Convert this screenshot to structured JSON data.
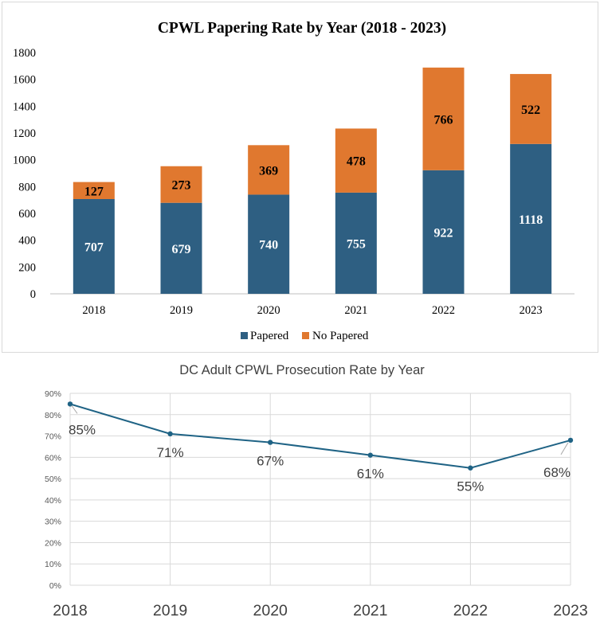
{
  "colors": {
    "papered": "#2e5f82",
    "no_papered": "#e0782f",
    "line": "#1f6385",
    "grid": "#d9d9d9",
    "axis": "#595959",
    "text": "#000000",
    "label_gray": "#404040"
  },
  "chart_data": [
    {
      "type": "bar",
      "stacked": true,
      "title": "CPWL Papering Rate by Year (2018 - 2023)",
      "categories": [
        "2018",
        "2019",
        "2020",
        "2021",
        "2022",
        "2023"
      ],
      "series": [
        {
          "name": "Papered",
          "color_key": "papered",
          "values": [
            707,
            679,
            740,
            755,
            922,
            1118
          ]
        },
        {
          "name": "No Papered",
          "color_key": "no_papered",
          "values": [
            127,
            273,
            369,
            478,
            766,
            522
          ]
        }
      ],
      "ylim": [
        0,
        1800
      ],
      "yticks": [
        0,
        200,
        400,
        600,
        800,
        1000,
        1200,
        1400,
        1600,
        1800
      ],
      "xlabel": "",
      "ylabel": "",
      "grid": false,
      "legend": "bottom"
    },
    {
      "type": "line",
      "title": "DC Adult CPWL Prosecution Rate by Year",
      "categories": [
        "2018",
        "2019",
        "2020",
        "2021",
        "2022",
        "2023"
      ],
      "series": [
        {
          "name": "Prosecution Rate",
          "color_key": "line",
          "values": [
            85,
            71,
            67,
            61,
            55,
            68
          ]
        }
      ],
      "data_labels": [
        "85%",
        "71%",
        "67%",
        "61%",
        "55%",
        "68%"
      ],
      "ylim": [
        0,
        90
      ],
      "yticks": [
        0,
        10,
        20,
        30,
        40,
        50,
        60,
        70,
        80,
        90
      ],
      "ytick_labels": [
        "0%",
        "10%",
        "20%",
        "30%",
        "40%",
        "50%",
        "60%",
        "70%",
        "80%",
        "90%"
      ],
      "xlabel": "",
      "ylabel": "",
      "grid": true,
      "legend": "none"
    }
  ]
}
